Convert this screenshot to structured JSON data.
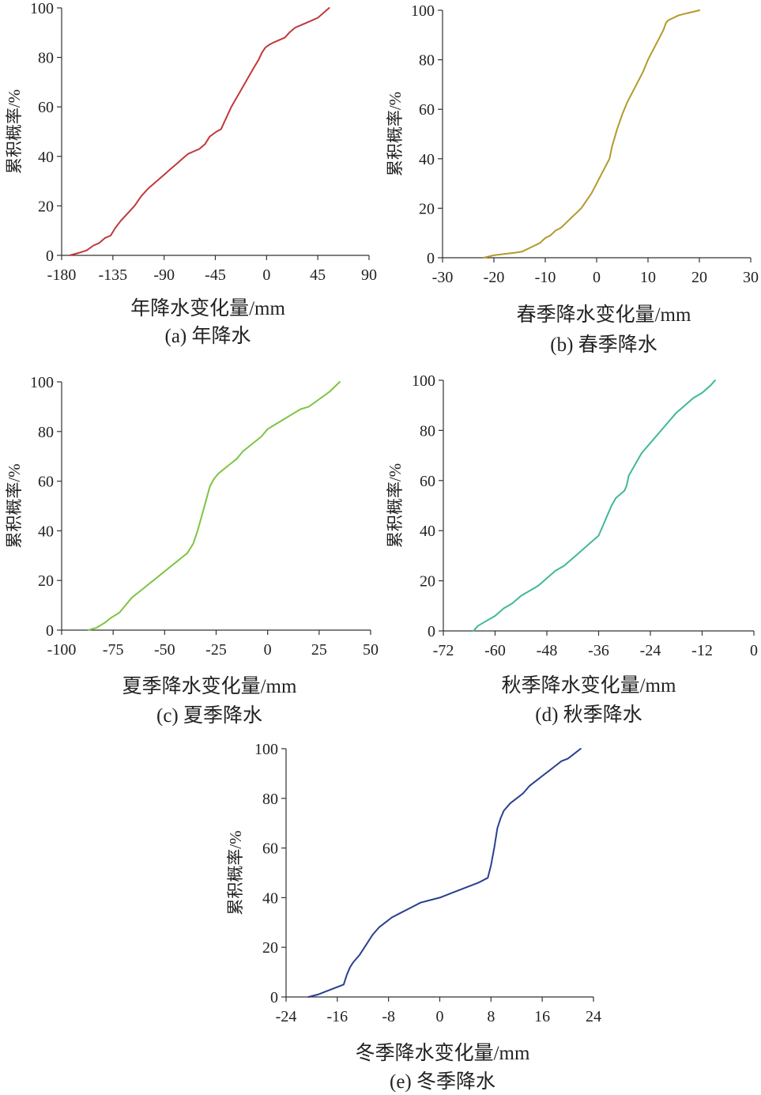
{
  "chart_data": [
    {
      "id": "a",
      "type": "line",
      "xlabel": "年降水变化量/mm",
      "ylabel": "累积概率/%",
      "caption": "(a) 年降水",
      "xlim": [
        -180,
        90
      ],
      "ylim": [
        0,
        100
      ],
      "xticks": [
        -180,
        -135,
        -90,
        -45,
        0,
        45,
        90
      ],
      "yticks": [
        0,
        20,
        40,
        60,
        80,
        100
      ],
      "color": "#c0393b",
      "series": [
        {
          "x": [
            -173,
            -165,
            -158,
            -152,
            -147,
            -142,
            -137,
            -133,
            -128,
            -122,
            -116,
            -110,
            -104,
            -99,
            -94,
            -89,
            -84,
            -79,
            -74,
            -69,
            -64,
            -59,
            -54,
            -50,
            -44,
            -40,
            -36,
            -31,
            -26,
            -21,
            -16,
            -11,
            -7,
            -4,
            -1,
            2,
            6,
            11,
            16,
            20,
            25,
            30,
            35,
            40,
            45,
            50,
            55
          ],
          "y": [
            0,
            1,
            2,
            4,
            5,
            7,
            8,
            11,
            14,
            17,
            20,
            24,
            27,
            29,
            31,
            33,
            35,
            37,
            39,
            41,
            42,
            43,
            45,
            48,
            50,
            51,
            55,
            60,
            64,
            68,
            72,
            76,
            79,
            82,
            84,
            85,
            86,
            87,
            88,
            90,
            92,
            93,
            94,
            95,
            96,
            98,
            100
          ]
        }
      ]
    },
    {
      "id": "b",
      "type": "line",
      "xlabel": "春季降水变化量/mm",
      "ylabel": "累积概率/%",
      "caption": "(b) 春季降水",
      "xlim": [
        -30,
        30
      ],
      "ylim": [
        0,
        100
      ],
      "xticks": [
        -30,
        -20,
        -10,
        0,
        10,
        20,
        30
      ],
      "yticks": [
        0,
        20,
        40,
        60,
        80,
        100
      ],
      "color": "#b39a2a",
      "series": [
        {
          "x": [
            -22,
            -20,
            -18,
            -16,
            -14.5,
            -13,
            -12,
            -11,
            -10,
            -9,
            -8,
            -7,
            -6,
            -5,
            -4,
            -3,
            -2,
            -1,
            0,
            1,
            2,
            2.5,
            3,
            4,
            5,
            6,
            7,
            8,
            9,
            10,
            11,
            12,
            13,
            13.5,
            14,
            15,
            16,
            17,
            18,
            19,
            20
          ],
          "y": [
            0,
            1,
            1.5,
            2,
            2.5,
            4,
            5,
            6,
            8,
            9,
            11,
            12,
            14,
            16,
            18,
            20,
            23,
            26,
            30,
            34,
            38,
            40,
            45,
            52,
            58,
            63,
            67,
            71,
            75,
            80,
            84,
            88,
            92,
            95,
            96,
            97,
            98,
            98.5,
            99,
            99.5,
            100
          ]
        }
      ]
    },
    {
      "id": "c",
      "type": "line",
      "xlabel": "夏季降水变化量/mm",
      "ylabel": "累积概率/%",
      "caption": "(c) 夏季降水",
      "xlim": [
        -100,
        50
      ],
      "ylim": [
        0,
        100
      ],
      "xticks": [
        -100,
        -75,
        -50,
        -25,
        0,
        25,
        50
      ],
      "yticks": [
        0,
        20,
        40,
        60,
        80,
        100
      ],
      "color": "#7ec443",
      "series": [
        {
          "x": [
            -87,
            -83,
            -79,
            -76,
            -72,
            -69,
            -66,
            -63,
            -60,
            -57,
            -54,
            -51,
            -48,
            -45,
            -42,
            -39,
            -36,
            -34,
            -32,
            -30,
            -28,
            -26,
            -24,
            -21,
            -18,
            -15,
            -12,
            -9,
            -6,
            -3,
            0,
            4,
            8,
            12,
            16,
            20,
            25,
            30,
            35
          ],
          "y": [
            0,
            1,
            3,
            5,
            7,
            10,
            13,
            15,
            17,
            19,
            21,
            23,
            25,
            27,
            29,
            31,
            35,
            40,
            46,
            52,
            58,
            61,
            63,
            65,
            67,
            69,
            72,
            74,
            76,
            78,
            81,
            83,
            85,
            87,
            89,
            90,
            93,
            96,
            100
          ]
        }
      ]
    },
    {
      "id": "d",
      "type": "line",
      "xlabel": "秋季降水变化量/mm",
      "ylabel": "累积概率/%",
      "caption": "(d) 秋季降水",
      "xlim": [
        -72,
        0
      ],
      "ylim": [
        0,
        100
      ],
      "xticks": [
        -72,
        -60,
        -48,
        -36,
        -24,
        -12,
        0
      ],
      "yticks": [
        0,
        20,
        40,
        60,
        80,
        100
      ],
      "color": "#3fb89a",
      "series": [
        {
          "x": [
            -65,
            -64,
            -62,
            -60,
            -58,
            -56,
            -54,
            -52,
            -50,
            -48,
            -46,
            -44,
            -42,
            -40,
            -38,
            -36,
            -35,
            -34,
            -33,
            -32,
            -30,
            -29.5,
            -29,
            -28,
            -27,
            -26,
            -25,
            -24,
            -22,
            -20,
            -18,
            -16,
            -14,
            -12,
            -10,
            -9
          ],
          "y": [
            0,
            2,
            4,
            6,
            9,
            11,
            14,
            16,
            18,
            21,
            24,
            26,
            29,
            32,
            35,
            38,
            42,
            46,
            50,
            53,
            56,
            58,
            62,
            65,
            68,
            71,
            73,
            75,
            79,
            83,
            87,
            90,
            93,
            95,
            98,
            100
          ]
        }
      ]
    },
    {
      "id": "e",
      "type": "line",
      "xlabel": "冬季降水变化量/mm",
      "ylabel": "累积概率/%",
      "caption": "(e) 冬季降水",
      "xlim": [
        -24,
        24
      ],
      "ylim": [
        0,
        100
      ],
      "xticks": [
        -24,
        -16,
        -8,
        0,
        8,
        16,
        24
      ],
      "yticks": [
        0,
        20,
        40,
        60,
        80,
        100
      ],
      "color": "#2a3f8f",
      "series": [
        {
          "x": [
            -20.5,
            -19,
            -18,
            -17,
            -15,
            -14.5,
            -14,
            -13.5,
            -12.5,
            -11.5,
            -10.5,
            -9.5,
            -8.5,
            -7.5,
            -6,
            -4.5,
            -3,
            -1.5,
            0,
            2,
            4,
            6,
            7.5,
            8,
            8.5,
            9,
            9.5,
            10,
            11,
            12,
            13,
            14,
            15,
            16,
            17,
            18,
            19,
            20,
            21,
            22
          ],
          "y": [
            0,
            1,
            2,
            3,
            5,
            9,
            12,
            14,
            17,
            21,
            25,
            28,
            30,
            32,
            34,
            36,
            38,
            39,
            40,
            42,
            44,
            46,
            48,
            53,
            60,
            68,
            72,
            75,
            78,
            80,
            82,
            85,
            87,
            89,
            91,
            93,
            95,
            96,
            98,
            100
          ]
        }
      ]
    }
  ]
}
